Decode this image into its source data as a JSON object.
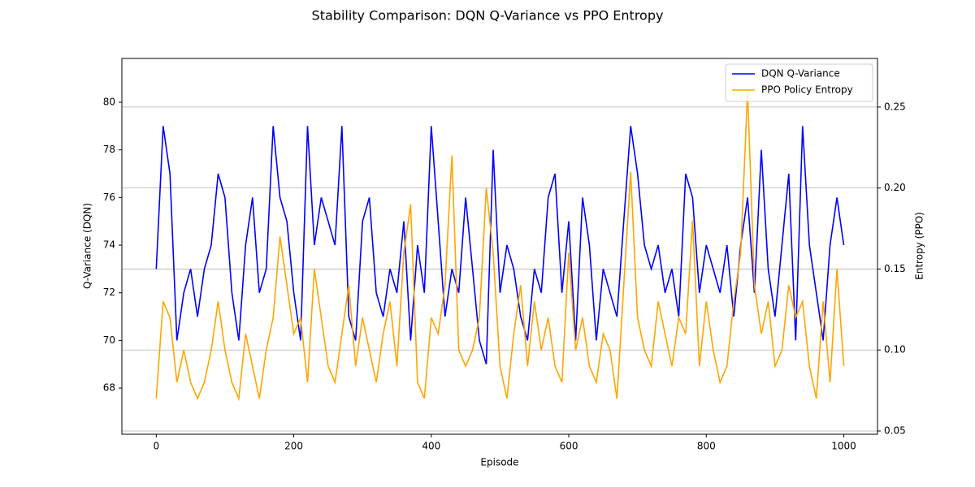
{
  "chart_data": {
    "type": "line",
    "title": "Stability Comparison: DQN Q-Variance vs PPO Entropy",
    "xlabel": "Episode",
    "ylabel": "Q-Variance (DQN)",
    "y2label": "Entropy (PPO)",
    "x": [
      0,
      10,
      20,
      30,
      40,
      50,
      60,
      70,
      80,
      90,
      100,
      110,
      120,
      130,
      140,
      150,
      160,
      170,
      180,
      190,
      200,
      210,
      220,
      230,
      240,
      250,
      260,
      270,
      280,
      290,
      300,
      310,
      320,
      330,
      340,
      350,
      360,
      370,
      380,
      390,
      400,
      410,
      420,
      430,
      440,
      450,
      460,
      470,
      480,
      490,
      500,
      510,
      520,
      530,
      540,
      550,
      560,
      570,
      580,
      590,
      600,
      610,
      620,
      630,
      640,
      650,
      660,
      670,
      680,
      690,
      700,
      710,
      720,
      730,
      740,
      750,
      760,
      770,
      780,
      790,
      800,
      810,
      820,
      830,
      840,
      850,
      860,
      870,
      880,
      890,
      900,
      910,
      920,
      930,
      940,
      950,
      960,
      970,
      980,
      990,
      1000
    ],
    "series": [
      {
        "name": "DQN Q-Variance",
        "color": "#0000ff",
        "axis": "y",
        "values": [
          73,
          79,
          77,
          70,
          72,
          73,
          71,
          73,
          74,
          77,
          76,
          72,
          70,
          74,
          76,
          72,
          73,
          79,
          76,
          75,
          72,
          70,
          79,
          74,
          76,
          75,
          74,
          79,
          71,
          70,
          75,
          76,
          72,
          71,
          73,
          72,
          75,
          70,
          74,
          72,
          79,
          75,
          71,
          73,
          72,
          76,
          73,
          70,
          69,
          78,
          72,
          74,
          73,
          71,
          70,
          73,
          72,
          76,
          77,
          72,
          75,
          70,
          76,
          74,
          70,
          73,
          72,
          71,
          75,
          79,
          77,
          74,
          73,
          74,
          72,
          73,
          71,
          77,
          76,
          72,
          74,
          73,
          72,
          74,
          71,
          74,
          76,
          72,
          78,
          73,
          71,
          74,
          77,
          70,
          79,
          74,
          72,
          70,
          74,
          76,
          74
        ]
      },
      {
        "name": "PPO Policy Entropy",
        "color": "#ffa500",
        "axis": "y2",
        "values": [
          0.07,
          0.13,
          0.12,
          0.08,
          0.1,
          0.08,
          0.07,
          0.08,
          0.1,
          0.13,
          0.1,
          0.08,
          0.07,
          0.11,
          0.09,
          0.07,
          0.1,
          0.12,
          0.17,
          0.14,
          0.11,
          0.12,
          0.08,
          0.15,
          0.12,
          0.09,
          0.08,
          0.11,
          0.14,
          0.09,
          0.12,
          0.1,
          0.08,
          0.11,
          0.13,
          0.09,
          0.16,
          0.19,
          0.08,
          0.07,
          0.12,
          0.11,
          0.14,
          0.22,
          0.1,
          0.09,
          0.1,
          0.12,
          0.2,
          0.16,
          0.09,
          0.07,
          0.11,
          0.14,
          0.09,
          0.13,
          0.1,
          0.12,
          0.09,
          0.08,
          0.16,
          0.1,
          0.12,
          0.09,
          0.08,
          0.11,
          0.1,
          0.07,
          0.14,
          0.21,
          0.12,
          0.1,
          0.09,
          0.13,
          0.11,
          0.09,
          0.12,
          0.11,
          0.18,
          0.09,
          0.13,
          0.1,
          0.08,
          0.09,
          0.13,
          0.16,
          0.26,
          0.14,
          0.11,
          0.13,
          0.09,
          0.1,
          0.14,
          0.12,
          0.13,
          0.09,
          0.07,
          0.13,
          0.08,
          0.15,
          0.09
        ]
      }
    ],
    "xlim": [
      -50,
      1049
    ],
    "xticks": [
      0,
      200,
      400,
      600,
      800,
      1000
    ],
    "ylim": [
      66.06,
      81.84
    ],
    "yticks": [
      68,
      70,
      72,
      74,
      76,
      78,
      80
    ],
    "y2lim": [
      0.048,
      0.28
    ],
    "y2ticks": [
      0.05,
      {
        "value": 0.1,
        "label": "0.10"
      },
      0.15,
      {
        "value": 0.2,
        "label": "0.20"
      },
      0.25
    ],
    "grid": "y2",
    "legend": "upper right"
  }
}
